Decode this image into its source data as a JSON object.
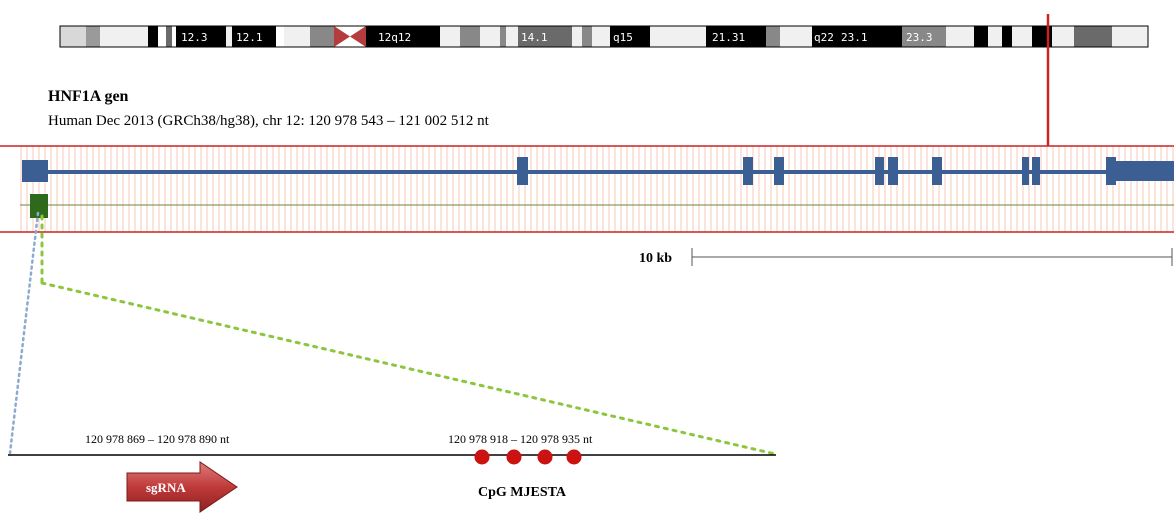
{
  "ideogram": {
    "bands": [
      "12.3",
      "12.1",
      "12q12",
      "14.1",
      "q15",
      "21.31",
      "q22",
      "23.1",
      "23.3"
    ]
  },
  "gene": {
    "title": "HNF1A gen",
    "subtitle": "Human Dec 2013 (GRCh38/hg38), chr 12:  120 978 543 – 121 002 512 nt"
  },
  "scale_bar": {
    "label": "10 kb"
  },
  "zoom": {
    "sgrna_range": "120 978 869 – 120 978 890 nt",
    "cpg_range": "120 978 918 – 120 978 935 nt",
    "sgrna_label": "sgRNA",
    "cpg_label": "CpG MJESTA"
  },
  "colors": {
    "gene_blue": "#3b5f93",
    "track_red": "#cc2222",
    "cpg_green": "#2f6a1c",
    "arrow_red": "#c54040",
    "cpg_dot": "#cc1111",
    "dotted_green": "#8cc63f",
    "dotted_blue": "#8aaad0"
  }
}
